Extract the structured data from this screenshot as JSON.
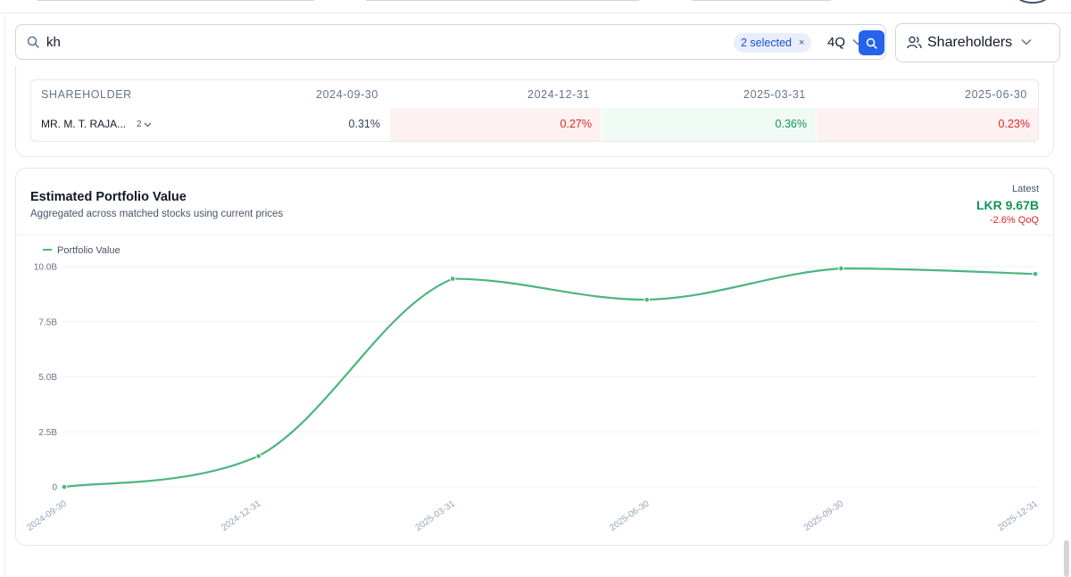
{
  "search": {
    "query": "kh",
    "selected_chip": "2 selected",
    "chip_clear": "×",
    "period": "4Q"
  },
  "scope": {
    "label": "Shareholders"
  },
  "table": {
    "columns": [
      "SHAREHOLDER",
      "2024-09-30",
      "2024-12-31",
      "2025-03-31",
      "2025-06-30"
    ],
    "row": {
      "name": "MR. M. T. RAJA...",
      "count": "2",
      "values": [
        "0.31%",
        "0.27%",
        "0.36%",
        "0.23%"
      ]
    }
  },
  "chart": {
    "title": "Estimated Portfolio Value",
    "subtitle": "Aggregated across matched stocks using current prices",
    "latest_label": "Latest",
    "latest_value": "LKR 9.67B",
    "latest_change": "-2.6% QoQ"
  },
  "chart_data": {
    "type": "line",
    "title": "Estimated Portfolio Value",
    "legend": "Portfolio Value",
    "x": [
      "2024-09-30",
      "2024-12-31",
      "2025-03-31",
      "2025-06-30",
      "2025-09-30",
      "2025-12-31"
    ],
    "series": [
      {
        "name": "Portfolio Value",
        "values": [
          0,
          1.4,
          9.45,
          8.5,
          9.92,
          9.67
        ]
      }
    ],
    "yticks": [
      "0",
      "2.5B",
      "5.0B",
      "7.5B",
      "10.0B"
    ],
    "ylim": [
      0,
      10
    ],
    "grid": true
  },
  "colors": {
    "accent": "#2563eb",
    "line": "#4cb57f",
    "positive": "#15935a",
    "negative": "#dc2626",
    "neg_bg": "#fdf1f1",
    "pos_bg": "#effbf4"
  },
  "icons": {
    "search": "search-icon",
    "users": "users-icon",
    "chevron": "chevron-down-icon"
  }
}
